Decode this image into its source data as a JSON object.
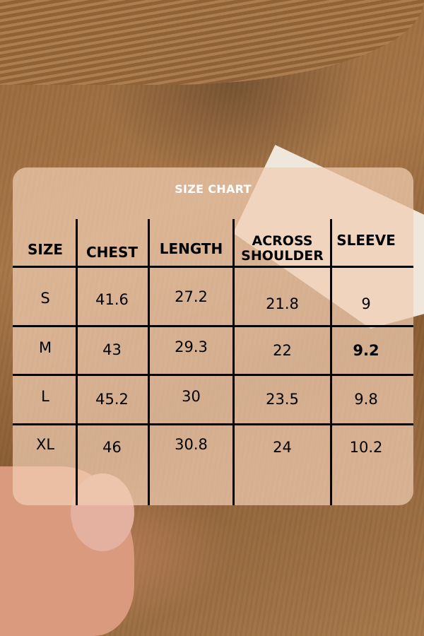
{
  "title": "SIZE CHART",
  "headers": [
    "SIZE",
    "CHEST",
    "LENGTH",
    "ACROSS SHOULDER",
    "SLEEVE"
  ],
  "rows": [
    [
      "S",
      "41.6",
      "27.2",
      "21.8",
      "9"
    ],
    [
      "M",
      "43",
      "29.3",
      "22",
      "9.2"
    ],
    [
      "L",
      "45.2",
      "30",
      "23.5",
      "9.8"
    ],
    [
      "XL",
      "46",
      "30.8",
      "24",
      "10.2"
    ]
  ]
}
